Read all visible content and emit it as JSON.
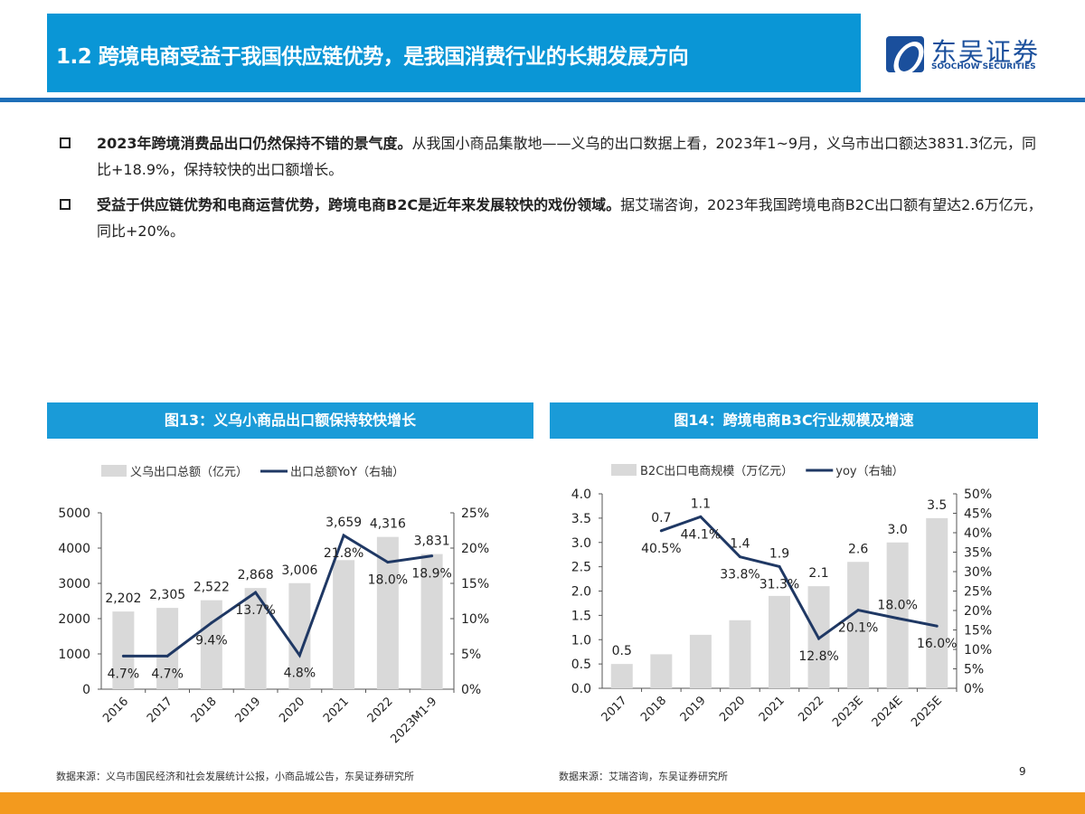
{
  "header": {
    "title": "1.2 跨境电商受益于我国供应链优势，是我国消费行业的长期发展方向",
    "logo_cn": "东吴证券",
    "logo_en": "SOOCHOW SECURITIES"
  },
  "bullets": [
    {
      "bold": "2023年跨境消费品出口仍然保持不错的景气度。",
      "text": "从我国小商品集散地——义乌的出口数据上看，2023年1~9月，义乌市出口额达3831.3亿元，同比+18.9%，保持较快的出口额增长。"
    },
    {
      "bold": "受益于供应链优势和电商运营优势，跨境电商B2C是近年来发展较快的戏份领域。",
      "text": "据艾瑞咨询，2023年我国跨境电商B2C出口额有望达2.6万亿元，同比+20%。"
    }
  ],
  "colors": {
    "header": "#0a96d6",
    "bar": "#d9d9d9",
    "line": "#1f3864",
    "footer": "#f39a1e"
  },
  "chart_data": [
    {
      "type": "bar+line",
      "title": "图13：义乌小商品出口额保持较快增长",
      "categories": [
        "2016",
        "2017",
        "2018",
        "2019",
        "2020",
        "2021",
        "2022",
        "2023M1-9"
      ],
      "series": [
        {
          "name": "义乌出口总额（亿元）",
          "type": "bar",
          "axis": "left",
          "values": [
            2202,
            2305,
            2522,
            2868,
            3006,
            3659,
            4316,
            3831
          ],
          "labels": [
            "2,202",
            "2,305",
            "2,522",
            "2,868",
            "3,006",
            "3,659",
            "4,316",
            "3,831"
          ]
        },
        {
          "name": "出口总额YoY（右轴）",
          "type": "line",
          "axis": "right",
          "values": [
            4.7,
            4.7,
            9.4,
            13.7,
            4.8,
            21.8,
            18.0,
            18.9
          ],
          "labels": [
            "4.7%",
            "4.7%",
            "9.4%",
            "13.7%",
            "4.8%",
            "21.8%",
            "18.0%",
            "18.9%"
          ]
        }
      ],
      "ylim": [
        0,
        5000
      ],
      "yticks": [
        "0",
        "1000",
        "2000",
        "3000",
        "4000",
        "5000"
      ],
      "y2lim": [
        0,
        25
      ],
      "y2ticks": [
        "0%",
        "5%",
        "10%",
        "15%",
        "20%",
        "25%"
      ],
      "legend": "top",
      "grid": false,
      "source": "数据来源：义乌市国民经济和社会发展统计公报，小商品城公告，东吴证券研究所"
    },
    {
      "type": "bar+line",
      "title": "图14：跨境电商B3C行业规模及增速",
      "categories": [
        "2017",
        "2018",
        "2019",
        "2020",
        "2021",
        "2022",
        "2023E",
        "2024E",
        "2025E"
      ],
      "series": [
        {
          "name": "B2C出口电商规模（万亿元）",
          "type": "bar",
          "axis": "left",
          "values": [
            0.5,
            0.7,
            1.1,
            1.4,
            1.9,
            2.1,
            2.6,
            3.0,
            3.5
          ],
          "labels": [
            "0.5",
            "0.7",
            "1.1",
            "1.4",
            "1.9",
            "2.1",
            "2.6",
            "3.0",
            "3.5"
          ]
        },
        {
          "name": "yoy（右轴）",
          "type": "line",
          "axis": "right",
          "values": [
            null,
            40.5,
            44.1,
            33.8,
            31.3,
            12.8,
            20.1,
            18.0,
            16.0
          ],
          "labels": [
            "",
            "40.5%",
            "44.1%",
            "33.8%",
            "31.3%",
            "12.8%",
            "20.1%",
            "18.0%",
            "16.0%"
          ]
        }
      ],
      "ylim": [
        0,
        4
      ],
      "yticks": [
        "0.0",
        "0.5",
        "1.0",
        "1.5",
        "2.0",
        "2.5",
        "3.0",
        "3.5",
        "4.0"
      ],
      "y2lim": [
        0,
        50
      ],
      "y2ticks": [
        "0%",
        "5%",
        "10%",
        "15%",
        "20%",
        "25%",
        "30%",
        "35%",
        "40%",
        "45%",
        "50%"
      ],
      "legend": "top",
      "grid": false,
      "source": "数据来源：艾瑞咨询，东吴证券研究所"
    }
  ],
  "page_number": "9"
}
